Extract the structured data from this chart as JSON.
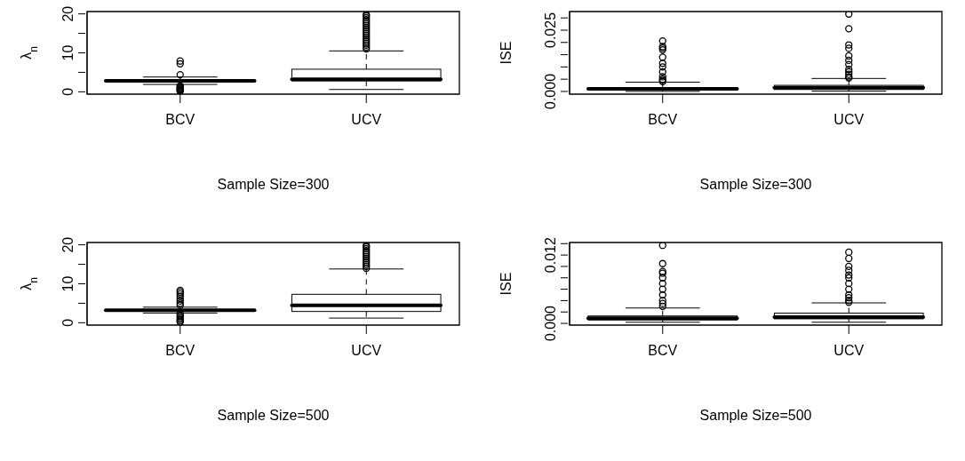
{
  "chart_data": [
    {
      "type": "box",
      "categories": [
        "BCV",
        "UCV"
      ],
      "xlabel": "Sample Size=300",
      "ylabel": "λ$_{n}$",
      "ylim": [
        -0.6,
        20.6
      ],
      "yticks": [
        0,
        {
          "value": 5,
          "label": null
        },
        10,
        {
          "value": 15,
          "label": null
        },
        20
      ],
      "boxes": [
        {
          "low": 1.9,
          "q1": 2.7,
          "median": 2.8,
          "q3": 2.9,
          "high": 3.8,
          "outliers": [
            7.9,
            7.2,
            4.4,
            1.5,
            1.3,
            1.1,
            0.9,
            0.7,
            0.5,
            0.3,
            0.2
          ]
        },
        {
          "low": 0.6,
          "q1": 2.8,
          "median": 3.2,
          "q3": 5.8,
          "high": 10.5,
          "outliers": [
            11,
            11.5,
            12,
            12.5,
            13,
            13.5,
            14,
            14.5,
            15,
            15.5,
            16,
            16.5,
            17,
            17.5,
            18,
            18.5,
            19,
            19.5,
            19.8
          ]
        }
      ]
    },
    {
      "type": "box",
      "categories": [
        "BCV",
        "UCV"
      ],
      "xlabel": "Sample Size=300",
      "ylabel": "ISE",
      "ylim": [
        -0.0011,
        0.0326
      ],
      "yticks": [
        {
          "value": 0,
          "label": "0.000"
        },
        {
          "value": 0.005,
          "label": null
        },
        {
          "value": 0.01,
          "label": null
        },
        {
          "value": 0.015,
          "label": null
        },
        {
          "value": 0.02,
          "label": null
        },
        {
          "value": 0.025,
          "label": "0.025"
        },
        {
          "value": 0.03,
          "label": null
        }
      ],
      "boxes": [
        {
          "low": 0.0,
          "q1": 0.0007,
          "median": 0.0011,
          "q3": 0.0015,
          "high": 0.0038,
          "outliers": [
            0.0206,
            0.0183,
            0.0177,
            0.017,
            0.014,
            0.0115,
            0.01,
            0.008,
            0.006,
            0.005,
            0.0045,
            0.004
          ]
        },
        {
          "low": 0.0001,
          "q1": 0.0008,
          "median": 0.0015,
          "q3": 0.0025,
          "high": 0.0053,
          "outliers": [
            0.0316,
            0.0256,
            0.019,
            0.0176,
            0.0145,
            0.0127,
            0.011,
            0.009,
            0.008,
            0.007,
            0.006,
            0.0055
          ]
        }
      ]
    },
    {
      "type": "box",
      "categories": [
        "BCV",
        "UCV"
      ],
      "xlabel": "Sample Size=500",
      "ylabel": "λ$_{n}$",
      "ylim": [
        -0.6,
        20.6
      ],
      "yticks": [
        0,
        {
          "value": 5,
          "label": null
        },
        10,
        {
          "value": 15,
          "label": null
        },
        20
      ],
      "boxes": [
        {
          "low": 2.5,
          "q1": 3.0,
          "median": 3.2,
          "q3": 3.3,
          "high": 4.0,
          "outliers": [
            8.3,
            7.9,
            7.4,
            6.8,
            6.2,
            5.6,
            5.0,
            4.5,
            2.4,
            2.0,
            1.6,
            1.2,
            0.8,
            0.4,
            0.2
          ]
        },
        {
          "low": 1.2,
          "q1": 2.9,
          "median": 4.5,
          "q3": 7.3,
          "high": 13.8,
          "outliers": [
            14,
            14.5,
            15,
            15.5,
            16,
            16.5,
            17,
            17.5,
            18,
            18.5,
            19,
            19.5,
            19.8
          ]
        }
      ]
    },
    {
      "type": "box",
      "categories": [
        "BCV",
        "UCV"
      ],
      "xlabel": "Sample Size=500",
      "ylabel": "ISE",
      "ylim": [
        -0.0003,
        0.0142
      ],
      "yticks": [
        {
          "value": 0,
          "label": "0.000"
        },
        {
          "value": 0.002,
          "label": null
        },
        {
          "value": 0.004,
          "label": null
        },
        {
          "value": 0.006,
          "label": null
        },
        {
          "value": 0.008,
          "label": null
        },
        {
          "value": 0.01,
          "label": null
        },
        {
          "value": 0.012,
          "label": "0.012"
        },
        {
          "value": 0.014,
          "label": null
        }
      ],
      "boxes": [
        {
          "low": 0.0002,
          "q1": 0.0006,
          "median": 0.0009,
          "q3": 0.0013,
          "high": 0.0027,
          "outliers": [
            0.0137,
            0.0105,
            0.0091,
            0.0088,
            0.008,
            0.007,
            0.006,
            0.005,
            0.004,
            0.0035,
            0.003
          ]
        },
        {
          "low": 0.0002,
          "q1": 0.0008,
          "median": 0.0011,
          "q3": 0.0018,
          "high": 0.0036,
          "outliers": [
            0.0125,
            0.0114,
            0.01,
            0.0093,
            0.0085,
            0.008,
            0.007,
            0.006,
            0.005,
            0.0045,
            0.004,
            0.0037
          ]
        }
      ]
    }
  ]
}
